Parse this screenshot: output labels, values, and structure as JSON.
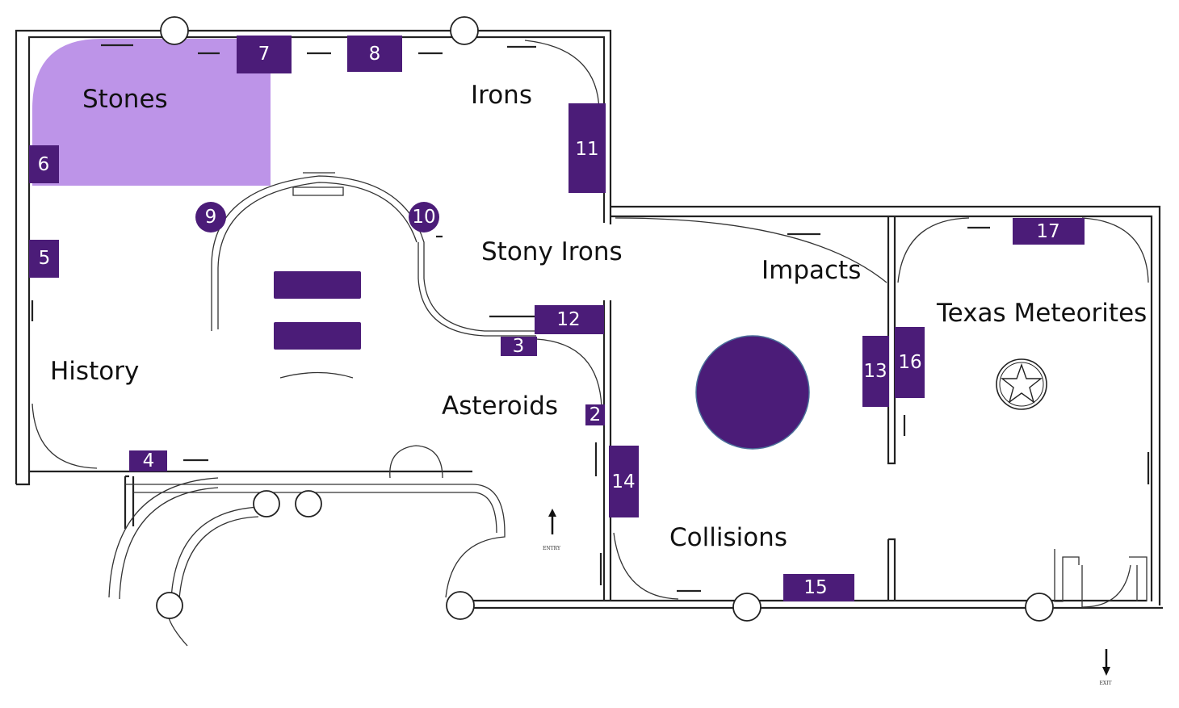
{
  "colors": {
    "case_fill": "#4b1c78",
    "highlight": "#bd94e8",
    "wall": "#222222"
  },
  "rooms": {
    "stones": "Stones",
    "irons": "Irons",
    "stony_irons": "Stony Irons",
    "impacts": "Impacts",
    "texas_meteorites": "Texas Meteorites",
    "history": "History",
    "asteroids": "Asteroids",
    "collisions": "Collisions"
  },
  "cases": {
    "c2": "2",
    "c3": "3",
    "c4": "4",
    "c5": "5",
    "c6": "6",
    "c7": "7",
    "c8": "8",
    "c9": "9",
    "c10": "10",
    "c11": "11",
    "c12": "12",
    "c13": "13",
    "c14": "14",
    "c15": "15",
    "c16": "16",
    "c17": "17"
  },
  "signs": {
    "entry": "ENTRY",
    "exit": "EXIT"
  },
  "icons": {
    "texas_star": "star-icon",
    "entry_arrow": "arrow-up-icon",
    "exit_arrow": "arrow-down-icon"
  }
}
